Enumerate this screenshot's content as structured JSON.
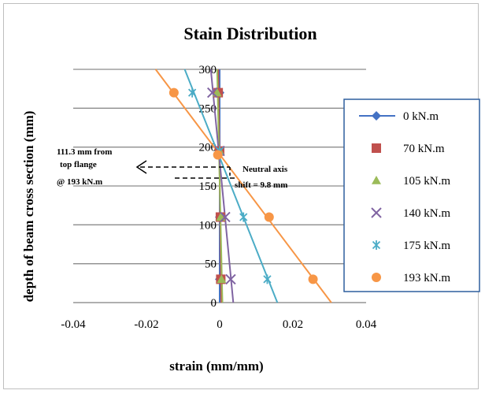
{
  "chart_data": {
    "type": "line",
    "title": "Stain Distribution",
    "xlabel": "strain (mm/mm)",
    "ylabel": "depth of beam cross section (mm)",
    "xlim": [
      -0.04,
      0.04
    ],
    "ylim": [
      0,
      300
    ],
    "x_ticks": [
      "-0.04",
      "-0.02",
      "0",
      "0.02",
      "0.04"
    ],
    "y_ticks": [
      "0",
      "50",
      "100",
      "150",
      "200",
      "250",
      "300"
    ],
    "grid": "horizontal",
    "legend_position": "right",
    "series": [
      {
        "name": "0 kN.m",
        "marker": "diamond",
        "color": "#4472c4",
        "points": [
          [
            0.0,
            30
          ],
          [
            0.0,
            110
          ],
          [
            0.0,
            195
          ],
          [
            0.0,
            270
          ]
        ]
      },
      {
        "name": "70 kN.m",
        "marker": "square",
        "color": "#c0504d",
        "points": [
          [
            0.0003,
            30
          ],
          [
            0.0002,
            110
          ],
          [
            0.0,
            195
          ],
          [
            -0.0004,
            270
          ]
        ]
      },
      {
        "name": "105 kN.m",
        "marker": "triangle",
        "color": "#9bbb59",
        "points": [
          [
            0.0005,
            30
          ],
          [
            0.0003,
            110
          ],
          [
            0.0,
            195
          ],
          [
            -0.0007,
            270
          ]
        ]
      },
      {
        "name": "140 kN.m",
        "marker": "x",
        "color": "#8064a2",
        "points": [
          [
            0.003,
            30
          ],
          [
            0.0015,
            110
          ],
          [
            0.0,
            195
          ],
          [
            -0.002,
            270
          ]
        ]
      },
      {
        "name": "175 kN.m",
        "marker": "star",
        "color": "#4bacc6",
        "points": [
          [
            0.013,
            30
          ],
          [
            0.0065,
            110
          ],
          [
            0.0,
            195
          ],
          [
            -0.0075,
            270
          ]
        ]
      },
      {
        "name": "193 kN.m",
        "marker": "circle",
        "color": "#f79646",
        "points": [
          [
            0.0255,
            30
          ],
          [
            0.0135,
            110
          ],
          [
            -0.0005,
            190
          ],
          [
            -0.0125,
            270
          ]
        ]
      }
    ],
    "annotations": {
      "left": [
        "111.3 mm from",
        "top flange",
        "@ 193 kN.m"
      ],
      "right": [
        "Neutral axis",
        "shift = 9.8 mm"
      ]
    }
  }
}
